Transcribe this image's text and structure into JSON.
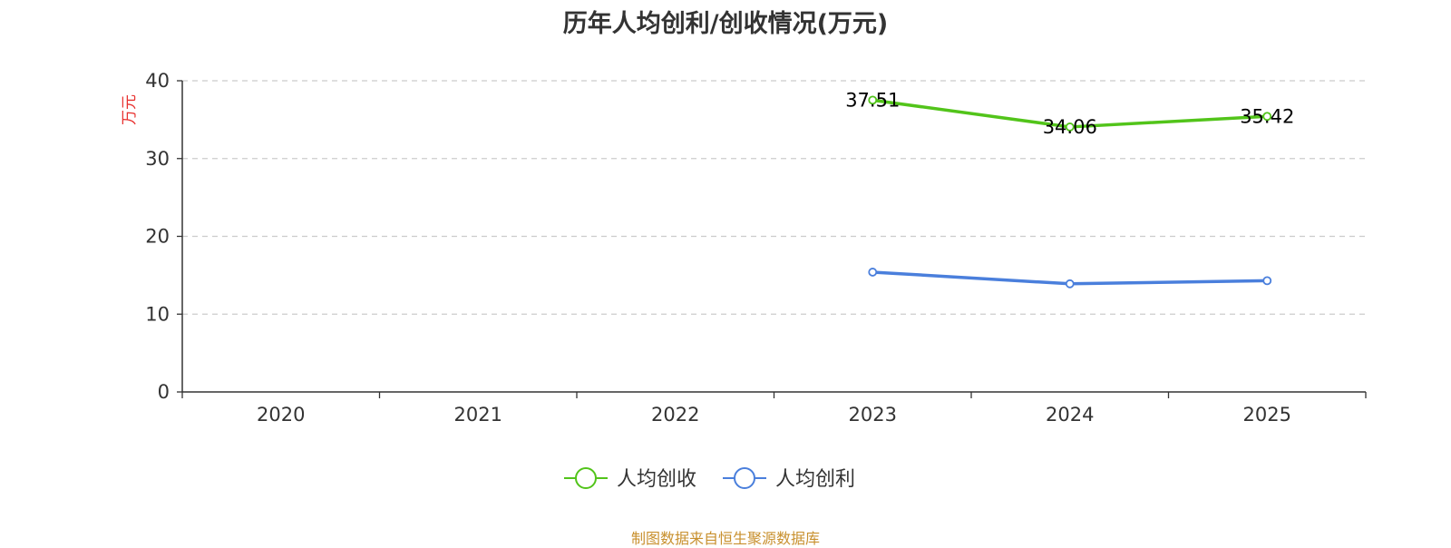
{
  "title": "历年人均创利/创收情况(万元)",
  "footer": "制图数据来自恒生聚源数据库",
  "chart_data": {
    "type": "line",
    "categories": [
      "2020",
      "2021",
      "2022",
      "2023",
      "2024",
      "2025"
    ],
    "ylabel": "万元",
    "ylim": [
      0,
      40
    ],
    "yticks": [
      0,
      10,
      20,
      30,
      40
    ],
    "grid": true,
    "legend_position": "bottom-center",
    "series": [
      {
        "name": "人均创收",
        "color": "#52c41a",
        "values": [
          null,
          null,
          null,
          37.51,
          34.06,
          35.42
        ],
        "show_labels": true
      },
      {
        "name": "人均创利",
        "color": "#4a7fdc",
        "values": [
          null,
          null,
          null,
          15.4,
          13.9,
          14.3
        ],
        "show_labels": false
      }
    ],
    "ylabel_color": "#e8312f"
  }
}
